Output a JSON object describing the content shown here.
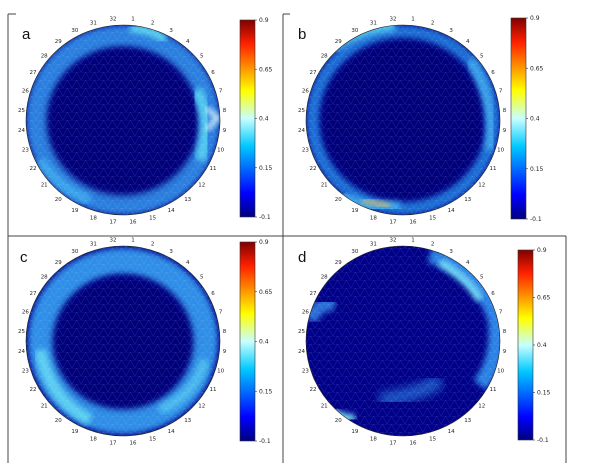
{
  "panels": [
    {
      "label": "a",
      "colorbar_ticks": [
        "0.9",
        "0.65",
        "0.4",
        "0.15",
        "-0.1"
      ]
    },
    {
      "label": "b",
      "colorbar_ticks": [
        "0.9",
        "0.65",
        "0.4",
        "0.15",
        "-0.1"
      ]
    },
    {
      "label": "c",
      "colorbar_ticks": [
        "0.9",
        "0.65",
        "0.4",
        "0.15",
        "-0.1"
      ]
    },
    {
      "label": "d",
      "colorbar_ticks": [
        "0.9",
        "0.65",
        "0.4",
        "0.15",
        "-0.1"
      ]
    }
  ],
  "electrodes": [
    "1",
    "2",
    "3",
    "4",
    "5",
    "6",
    "7",
    "8",
    "9",
    "10",
    "11",
    "12",
    "13",
    "14",
    "15",
    "16",
    "17",
    "18",
    "19",
    "20",
    "21",
    "22",
    "23",
    "24",
    "25",
    "26",
    "27",
    "28",
    "29",
    "30",
    "31",
    "32"
  ],
  "colors": {
    "background": "#00008a",
    "ring": "#2a82e6",
    "ring_light": "#5fd0f2",
    "mesh": "#ffffff",
    "frame": "#444444"
  }
}
